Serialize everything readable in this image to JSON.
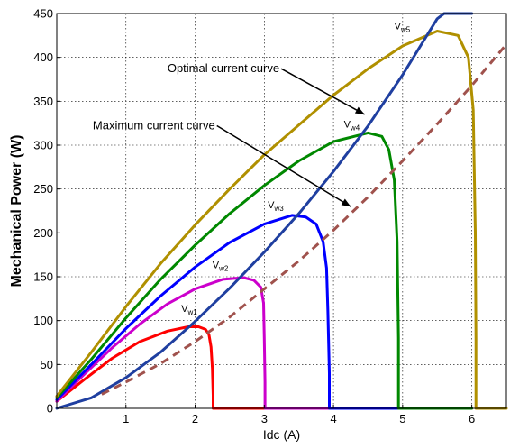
{
  "chart_data": {
    "type": "line",
    "xlabel": "Idc (A)",
    "ylabel": "Mechanical Power (W)",
    "xlim": [
      0,
      6.5
    ],
    "ylim": [
      0,
      450
    ],
    "xticks": [
      1,
      2,
      3,
      4,
      5,
      6
    ],
    "yticks": [
      0,
      50,
      100,
      150,
      200,
      250,
      300,
      350,
      400,
      450
    ],
    "grid": true,
    "series": [
      {
        "name": "Vw1",
        "label_base": "V",
        "label_sub": "w1",
        "color": "#ff0000",
        "label_at": [
          1.8,
          110
        ],
        "x": [
          0,
          0.4,
          0.8,
          1.2,
          1.6,
          1.9,
          2.05,
          2.15,
          2.2,
          2.23,
          2.25,
          2.26,
          2.26,
          2.3,
          2.8,
          3.0
        ],
        "y": [
          8,
          33,
          57,
          76,
          88,
          93,
          93,
          90,
          84,
          70,
          45,
          15,
          0,
          0,
          0,
          0
        ]
      },
      {
        "name": "Vw2",
        "label_base": "V",
        "label_sub": "w2",
        "color": "#cc00cc",
        "label_at": [
          2.25,
          160
        ],
        "x": [
          0,
          0.4,
          0.8,
          1.2,
          1.6,
          2.0,
          2.4,
          2.7,
          2.85,
          2.95,
          2.99,
          3.0,
          3.01,
          3.01,
          3.5,
          4.0
        ],
        "y": [
          8,
          39,
          69,
          96,
          119,
          136,
          147,
          149,
          146,
          138,
          120,
          80,
          30,
          0,
          0,
          0
        ]
      },
      {
        "name": "Vw3",
        "label_base": "V",
        "label_sub": "w3",
        "color": "#0000ff",
        "label_at": [
          3.05,
          228
        ],
        "x": [
          0,
          0.5,
          1.0,
          1.5,
          2.0,
          2.5,
          3.0,
          3.4,
          3.6,
          3.75,
          3.85,
          3.9,
          3.92,
          3.94,
          3.94,
          4.5,
          5.0
        ],
        "y": [
          10,
          50,
          91,
          128,
          161,
          189,
          210,
          220,
          218,
          210,
          190,
          160,
          110,
          40,
          0,
          0,
          0
        ]
      },
      {
        "name": "Vw4",
        "label_base": "V",
        "label_sub": "w4",
        "color": "#008800",
        "label_at": [
          4.15,
          320
        ],
        "x": [
          0,
          0.5,
          1.0,
          1.5,
          2.0,
          2.5,
          3.0,
          3.5,
          4.0,
          4.5,
          4.7,
          4.8,
          4.88,
          4.92,
          4.94,
          4.94,
          5.5,
          6.0
        ],
        "y": [
          12,
          56,
          103,
          147,
          186,
          222,
          254,
          282,
          304,
          314,
          310,
          295,
          260,
          190,
          80,
          0,
          0,
          0
        ]
      },
      {
        "name": "Vw5",
        "label_base": "V",
        "label_sub": "w5",
        "color": "#b09000",
        "label_at": [
          4.88,
          432
        ],
        "x": [
          0,
          0.5,
          1.0,
          1.5,
          2.0,
          2.5,
          3.0,
          3.5,
          4.0,
          4.5,
          5.0,
          5.5,
          5.8,
          5.95,
          6.02,
          6.05,
          6.06,
          6.06,
          6.5
        ],
        "y": [
          14,
          64,
          116,
          165,
          209,
          250,
          289,
          323,
          357,
          387,
          413,
          430,
          425,
          400,
          340,
          200,
          80,
          0,
          0
        ]
      },
      {
        "name": "Optimal current curve",
        "color": "#1f3fa0",
        "x": [
          0,
          0.5,
          1.0,
          1.5,
          2.0,
          2.5,
          3.0,
          3.5,
          4.0,
          4.5,
          5.0,
          5.5,
          5.6,
          6.0
        ],
        "y": [
          0,
          12,
          35,
          64,
          99,
          137,
          178,
          222,
          270,
          322,
          380,
          444,
          450,
          450
        ]
      },
      {
        "name": "Maximum current curve",
        "color": "#a0524d",
        "dashed": true,
        "x": [
          0.65,
          1.0,
          1.5,
          2.0,
          2.5,
          3.0,
          3.5,
          4.0,
          4.5,
          5.0,
          5.5,
          6.0,
          6.5
        ],
        "y": [
          16,
          30,
          51,
          76,
          104,
          136,
          168,
          203,
          241,
          282,
          324,
          368,
          415
        ]
      }
    ],
    "annotations": [
      {
        "text": "Optimal current curve",
        "text_at": [
          1.6,
          383
        ],
        "arrow_to": [
          4.45,
          335
        ]
      },
      {
        "text": "Maximum current curve",
        "text_at": [
          0.52,
          318
        ],
        "arrow_to": [
          4.25,
          230
        ]
      }
    ]
  }
}
